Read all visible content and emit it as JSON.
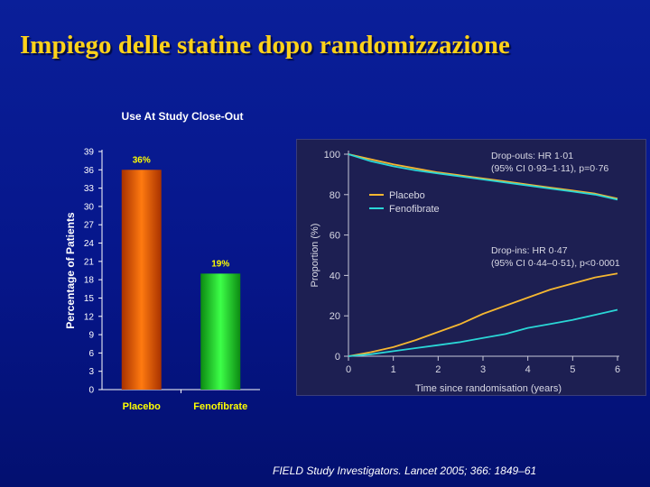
{
  "slide": {
    "title": "Impiego delle statine dopo randomizzazione",
    "citation": "FIELD Study Investigators. Lancet 2005; 366: 1849–61"
  },
  "colors": {
    "title": "#ffd21a",
    "placebo_bar": "#ff6a00",
    "fenofibrate_bar": "#22e02a",
    "placebo_line": "#f5b731",
    "fenofibrate_line": "#2ad6d6",
    "panel_bg": "#1d1f52"
  },
  "chart_data": [
    {
      "type": "bar",
      "title": "Use At Study Close-Out",
      "ylabel": "Percentage of Patients",
      "xlabel": "",
      "categories": [
        "Placebo",
        "Fenofibrate"
      ],
      "values": [
        36,
        19
      ],
      "data_labels": [
        "36%",
        "19%"
      ],
      "ylim": [
        0,
        39
      ],
      "yticks": [
        0,
        3,
        6,
        9,
        12,
        15,
        18,
        21,
        24,
        27,
        30,
        33,
        36,
        39
      ],
      "grid": false
    },
    {
      "type": "line",
      "title": "",
      "xlabel": "Time since randomisation (years)",
      "ylabel": "Proportion (%)",
      "xlim": [
        0,
        6
      ],
      "ylim": [
        0,
        100
      ],
      "xticks": [
        0,
        1,
        2,
        3,
        4,
        5,
        6
      ],
      "yticks": [
        0,
        20,
        40,
        60,
        80,
        100
      ],
      "legend": {
        "position": "top-left",
        "entries": [
          "Placebo",
          "Fenofibrate"
        ]
      },
      "annotations": [
        {
          "lines": [
            "Drop-outs: HR 1·01",
            "(95% CI 0·93–1·11), p=0·76"
          ]
        },
        {
          "lines": [
            "Drop-ins: HR 0·47",
            "(95% CI 0·44–0·51), p<0·0001"
          ]
        }
      ],
      "series": [
        {
          "name": "Placebo",
          "group": "drop-outs",
          "x": [
            0,
            0.5,
            1,
            1.5,
            2,
            2.5,
            3,
            3.5,
            4,
            4.5,
            5,
            5.5,
            6
          ],
          "y": [
            100,
            97.5,
            95,
            93,
            91,
            89.5,
            88,
            86.5,
            85,
            83.5,
            82,
            80.5,
            78
          ]
        },
        {
          "name": "Fenofibrate",
          "group": "drop-outs",
          "x": [
            0,
            0.5,
            1,
            1.5,
            2,
            2.5,
            3,
            3.5,
            4,
            4.5,
            5,
            5.5,
            6
          ],
          "y": [
            100,
            96.5,
            94,
            92,
            90.5,
            89,
            87.5,
            86,
            84.5,
            83,
            81.5,
            80,
            77.5
          ]
        },
        {
          "name": "Placebo",
          "group": "drop-ins",
          "x": [
            0,
            0.5,
            1,
            1.5,
            2,
            2.5,
            3,
            3.5,
            4,
            4.5,
            5,
            5.5,
            6
          ],
          "y": [
            0,
            2,
            4.5,
            8,
            12,
            16,
            21,
            25,
            29,
            33,
            36,
            39,
            41
          ]
        },
        {
          "name": "Fenofibrate",
          "group": "drop-ins",
          "x": [
            0,
            0.5,
            1,
            1.5,
            2,
            2.5,
            3,
            3.5,
            4,
            4.5,
            5,
            5.5,
            6
          ],
          "y": [
            0,
            1,
            2.5,
            4,
            5.5,
            7,
            9,
            11,
            14,
            16,
            18,
            20.5,
            23
          ]
        }
      ]
    }
  ]
}
